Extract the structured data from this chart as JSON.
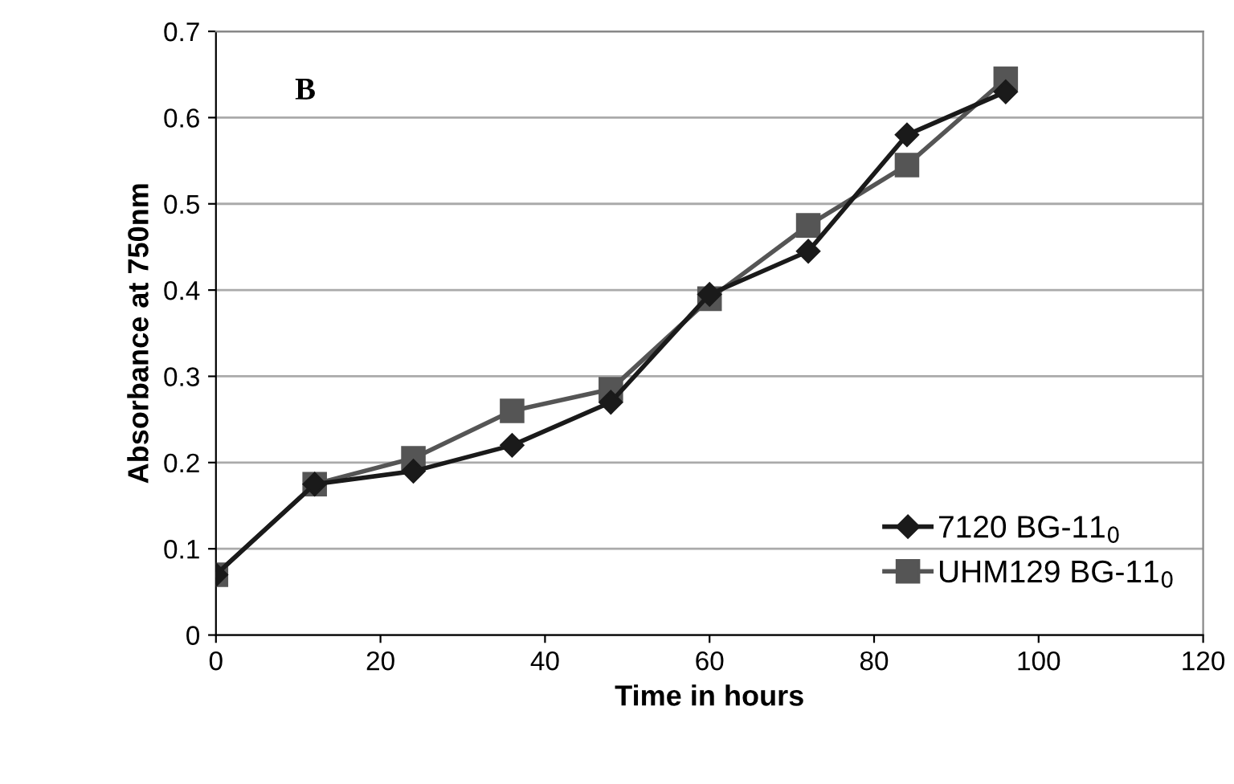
{
  "chart_data": {
    "type": "line",
    "xlabel": "Time in hours",
    "ylabel": "Absorbance at 750nm",
    "annotations": [
      "B"
    ],
    "x": [
      0,
      12,
      24,
      36,
      48,
      60,
      72,
      84,
      96
    ],
    "series": [
      {
        "name": "7120 BG-11$_{0}$",
        "color": "#1a1a1a",
        "marker": "diamond",
        "values": [
          0.07,
          0.175,
          0.19,
          0.22,
          0.27,
          0.395,
          0.445,
          0.58,
          0.63
        ]
      },
      {
        "name": "UHM129 BG-11$_{0}$",
        "color": "#555555",
        "marker": "square",
        "values": [
          0.07,
          0.175,
          0.205,
          0.26,
          0.285,
          0.39,
          0.475,
          0.545,
          0.645
        ]
      }
    ],
    "xlim": [
      0,
      120
    ],
    "xticks": [
      0,
      20,
      40,
      60,
      80,
      100,
      120
    ],
    "ylim": [
      0,
      0.7
    ],
    "yticks": [
      0,
      0.1,
      0.2,
      0.3,
      0.4,
      0.5,
      0.6,
      0.7
    ],
    "grid": "y",
    "legend": "bottom right",
    "line_style": "solid"
  }
}
